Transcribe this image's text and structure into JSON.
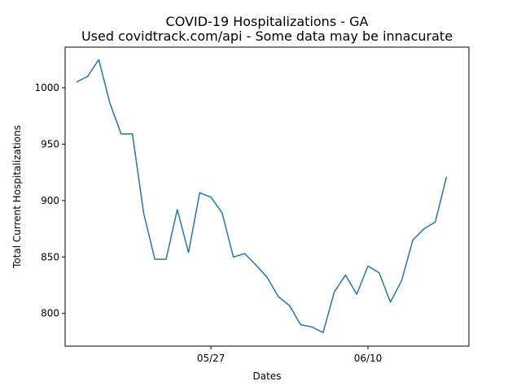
{
  "chart_data": {
    "type": "line",
    "title": "COVID-19 Hospitalizations - GA",
    "subtitle": "Used covidtrack.com/api - Some data may be innacurate",
    "xlabel": "Dates",
    "ylabel": "Total Current Hospitalizations",
    "x": [
      "05/15",
      "05/16",
      "05/17",
      "05/18",
      "05/19",
      "05/20",
      "05/21",
      "05/22",
      "05/23",
      "05/24",
      "05/25",
      "05/26",
      "05/27",
      "05/28",
      "05/29",
      "05/30",
      "05/31",
      "06/01",
      "06/02",
      "06/03",
      "06/04",
      "06/05",
      "06/06",
      "06/07",
      "06/08",
      "06/09",
      "06/10",
      "06/11",
      "06/12",
      "06/13",
      "06/14",
      "06/15",
      "06/16",
      "06/17",
      "06/18"
    ],
    "y_ticks": [
      800,
      850,
      900,
      950,
      1000
    ],
    "x_ticks": [
      "05/27",
      "06/10"
    ],
    "ylim": [
      771,
      1036
    ],
    "xlim": [
      "05/14",
      "06/19"
    ],
    "legend": "none",
    "grid": false,
    "color": "#1f77b4",
    "series": [
      {
        "values": [
          1005,
          1010,
          1025,
          986,
          959,
          959,
          889,
          848,
          848,
          892,
          854,
          907,
          903,
          889,
          850,
          853,
          843,
          832,
          815,
          807,
          790,
          788,
          783,
          819,
          834,
          817,
          842,
          836,
          810,
          829,
          865,
          875,
          881,
          921,
          null
        ]
      }
    ]
  }
}
